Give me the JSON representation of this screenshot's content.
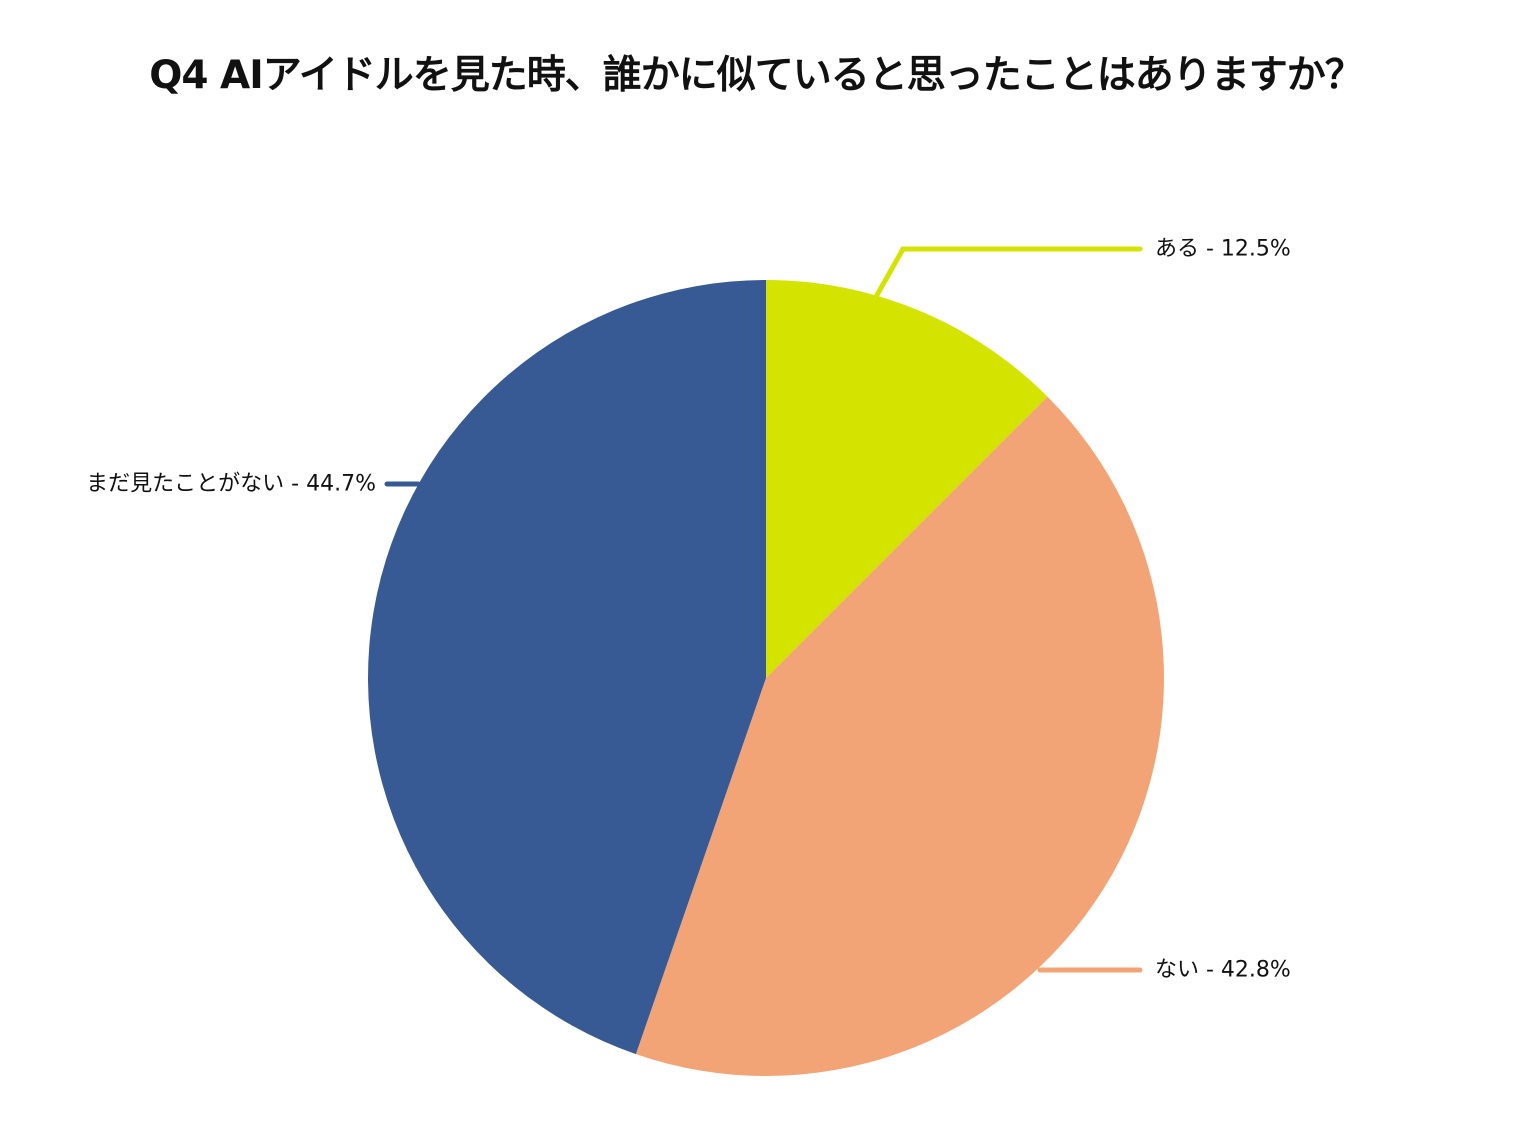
{
  "chart_data": {
    "type": "pie",
    "title": "Q4 AIアイドルを見た時、誰かに似ていると思ったことはありますか？",
    "start_angle": "top",
    "direction": "clockwise",
    "slices": [
      {
        "label": "ある",
        "value": 12.5,
        "display": "ある - 12.5%",
        "color": "#d4e300"
      },
      {
        "label": "ない",
        "value": 42.8,
        "display": "ない - 42.8%",
        "color": "#f3a476"
      },
      {
        "label": "まだ見たことがない",
        "value": 44.7,
        "display": "まだ見たことがない - 44.7%",
        "color": "#385a94"
      }
    ]
  }
}
